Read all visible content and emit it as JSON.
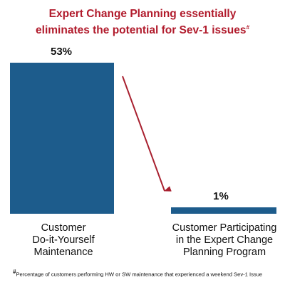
{
  "title": {
    "line1": "Expert Change Planning essentially",
    "line2": "eliminates the potential for Sev-1 issues",
    "mark": "#"
  },
  "footnote": {
    "mark": "#",
    "text": "Percentage of customers performing HW or SW maintenance that experienced a weekend Sev-1 Issue"
  },
  "colors": {
    "title": "#b11b2c",
    "bar": "#1d5c8c",
    "arrow": "#a8202f",
    "text": "#111111"
  },
  "chart_data": {
    "type": "bar",
    "categories": [
      [
        "Customer",
        "Do-it-Yourself",
        "Maintenance"
      ],
      [
        "Customer Participating",
        "in the Expert Change",
        "Planning Program"
      ]
    ],
    "values": [
      53,
      1
    ],
    "value_labels": [
      "53%",
      "1%"
    ],
    "unit": "%",
    "ylim": [
      0,
      53
    ],
    "grid": false,
    "legend": "none",
    "annotation": "arrow from first bar down to second bar"
  }
}
